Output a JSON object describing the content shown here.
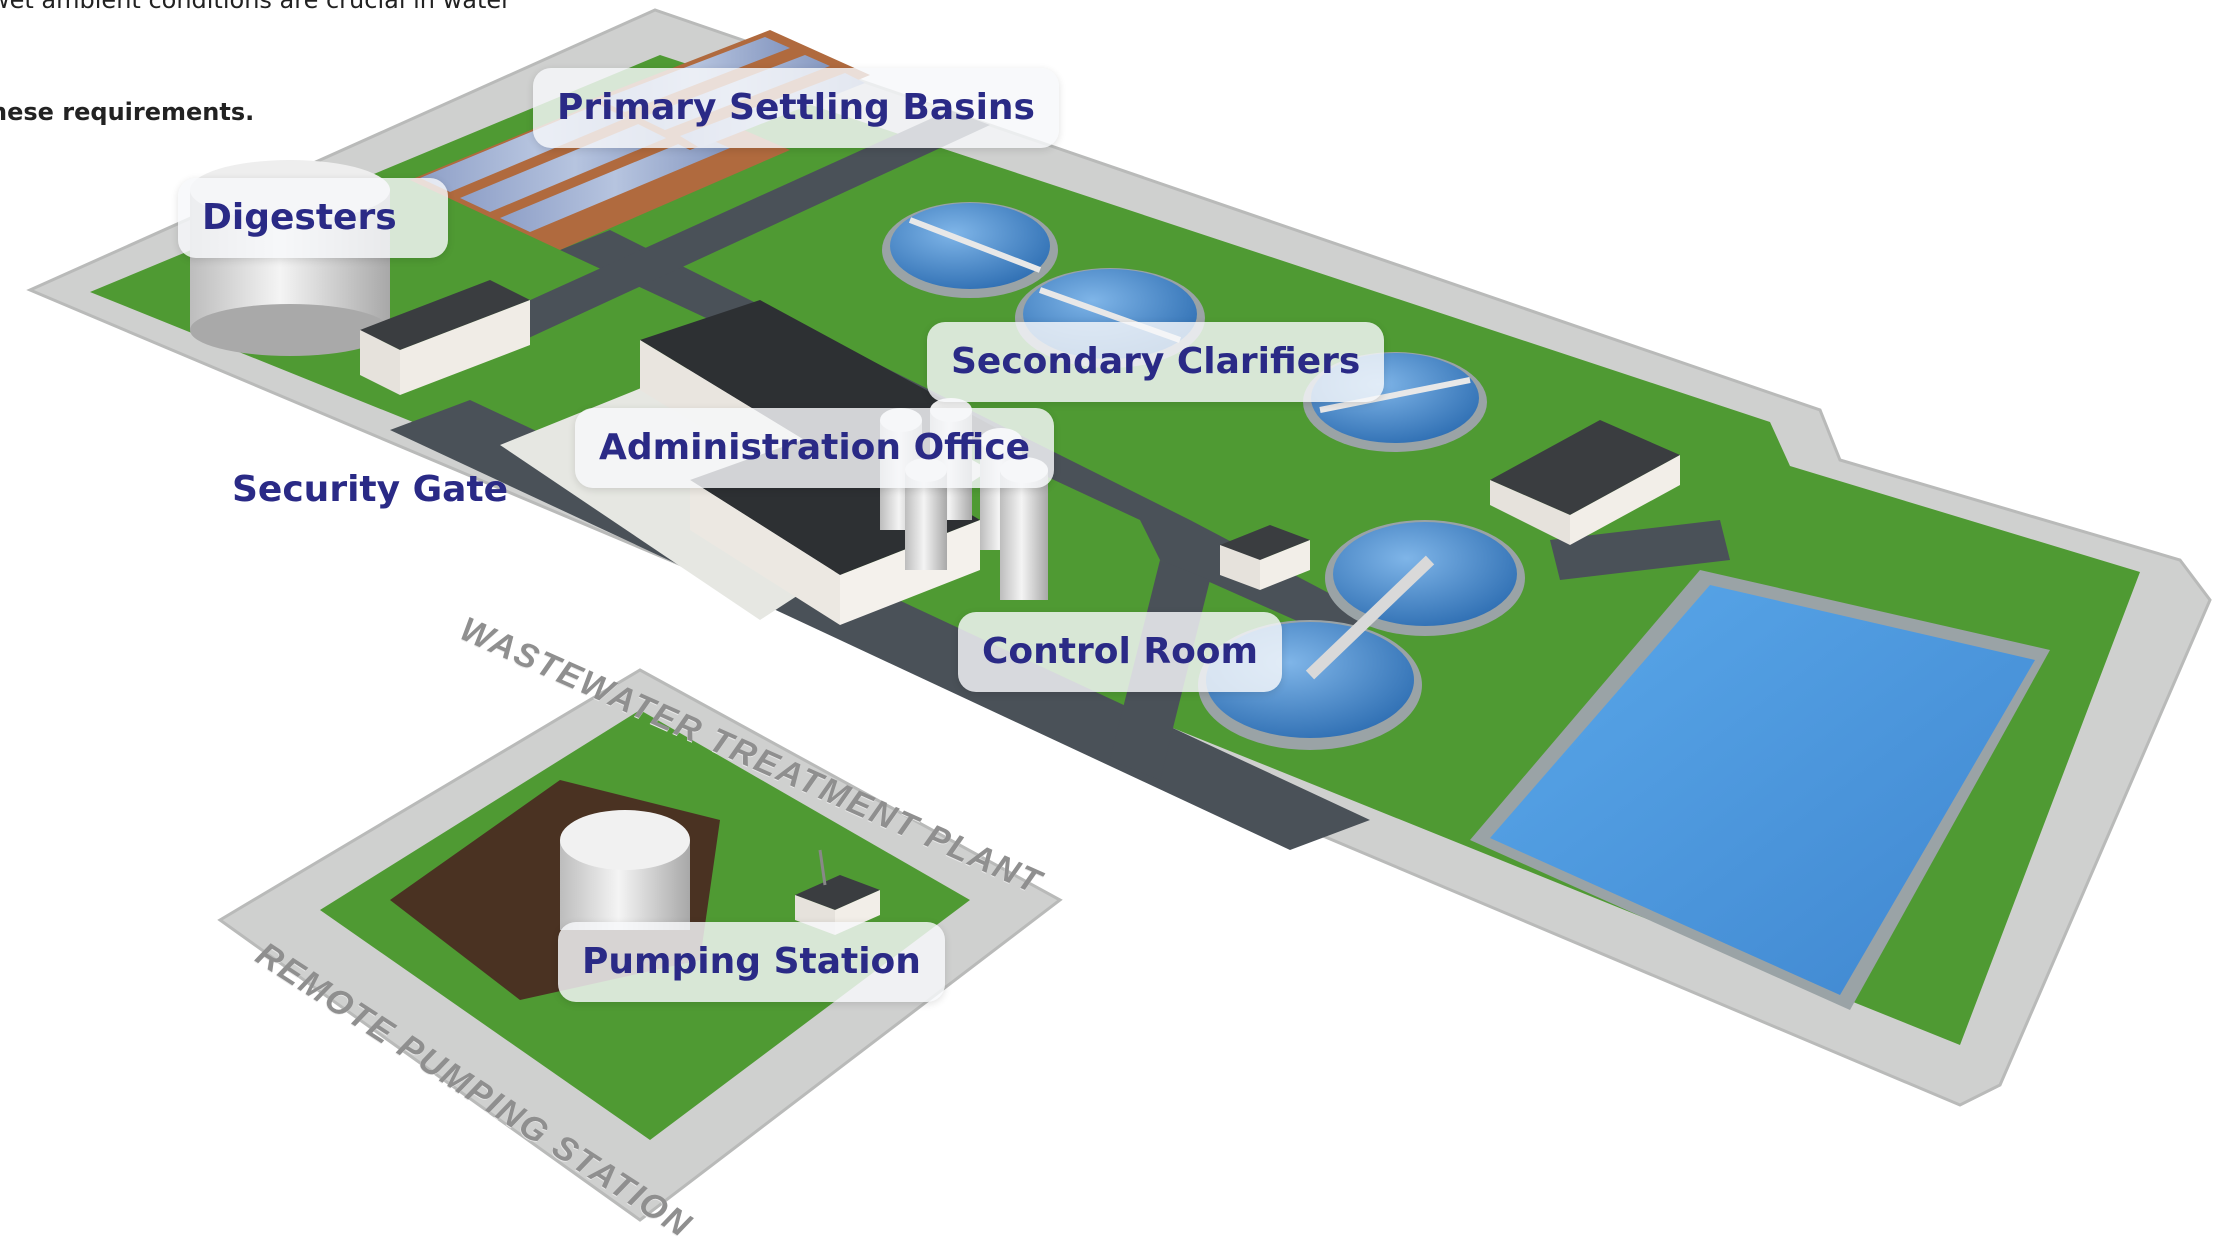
{
  "intro": {
    "line1": "wet ambient conditions are crucial in water",
    "line2": "hese requirements."
  },
  "labels": {
    "primary_settling_basins": "Primary Settling Basins",
    "digesters": "Digesters",
    "secondary_clarifiers": "Secondary Clarifiers",
    "administration_office": "Administration Office",
    "security_gate": "Security Gate",
    "control_room": "Control Room",
    "pumping_station": "Pumping Station"
  },
  "ground_text": {
    "plant": "WASTEWATER TREATMENT PLANT",
    "remote": "REMOTE PUMPING STATION"
  },
  "colors": {
    "label_text": "#2a2a86",
    "grass": "#4f9a33",
    "water": "#4a8fd6",
    "road": "#4a5158",
    "border": "#cfd0cf"
  }
}
